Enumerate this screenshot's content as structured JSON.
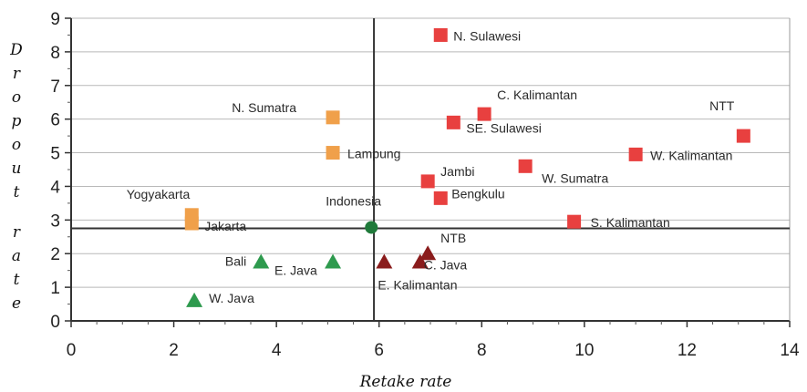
{
  "chart_data": {
    "type": "scatter",
    "xlabel": "Retake rate",
    "ylabel": "Dropout rate",
    "xlim": [
      0,
      14
    ],
    "ylim": [
      0,
      9
    ],
    "x_ticks": [
      "0",
      "2",
      "4",
      "6",
      "8",
      "10",
      "12",
      "14"
    ],
    "y_ticks": [
      "0",
      "1",
      "2",
      "3",
      "4",
      "5",
      "6",
      "7",
      "8",
      "9"
    ],
    "grid": "horizontal",
    "reference_lines": {
      "x": 5.9,
      "y": 2.75
    },
    "colors": {
      "red_square": "#e8403f",
      "orange_square": "#f0a04a",
      "green_triangle": "#2e9a4e",
      "dark_red_triangle": "#8a1c1c",
      "green_circle": "#1f7a3a"
    },
    "points": [
      {
        "label": "N. Sulawesi",
        "x": 7.2,
        "y": 8.5,
        "marker": "red_square"
      },
      {
        "label": "C. Kalimantan",
        "x": 8.05,
        "y": 6.15,
        "marker": "red_square"
      },
      {
        "label": "SE. Sulawesi",
        "x": 7.45,
        "y": 5.9,
        "marker": "red_square"
      },
      {
        "label": "NTT",
        "x": 13.1,
        "y": 5.5,
        "marker": "red_square"
      },
      {
        "label": "W. Kalimantan",
        "x": 11.0,
        "y": 4.95,
        "marker": "red_square"
      },
      {
        "label": "W. Sumatra",
        "x": 8.85,
        "y": 4.6,
        "marker": "red_square"
      },
      {
        "label": "Jambi",
        "x": 6.95,
        "y": 4.15,
        "marker": "red_square"
      },
      {
        "label": "Bengkulu",
        "x": 7.2,
        "y": 3.65,
        "marker": "red_square"
      },
      {
        "label": "S. Kalimantan",
        "x": 9.8,
        "y": 2.95,
        "marker": "red_square"
      },
      {
        "label": "N. Sumatra",
        "x": 5.1,
        "y": 6.05,
        "marker": "orange_square"
      },
      {
        "label": "Lampung",
        "x": 5.1,
        "y": 5.0,
        "marker": "orange_square"
      },
      {
        "label": "Yogyakarta",
        "x": 2.35,
        "y": 3.15,
        "marker": "orange_square"
      },
      {
        "label": "Jakarta",
        "x": 2.35,
        "y": 2.9,
        "marker": "orange_square"
      },
      {
        "label": "Indonesia",
        "x": 5.85,
        "y": 2.78,
        "marker": "green_circle"
      },
      {
        "label": "Bali",
        "x": 3.7,
        "y": 1.75,
        "marker": "green_triangle"
      },
      {
        "label": "E. Java",
        "x": 5.1,
        "y": 1.75,
        "marker": "green_triangle"
      },
      {
        "label": "W. Java",
        "x": 2.4,
        "y": 0.6,
        "marker": "green_triangle"
      },
      {
        "label": "NTB",
        "x": 6.95,
        "y": 2.0,
        "marker": "dark_red_triangle"
      },
      {
        "label": "C. Java",
        "x": 6.8,
        "y": 1.75,
        "marker": "dark_red_triangle"
      },
      {
        "label": "E. Kalimantan",
        "x": 6.1,
        "y": 1.75,
        "marker": "dark_red_triangle"
      }
    ]
  }
}
